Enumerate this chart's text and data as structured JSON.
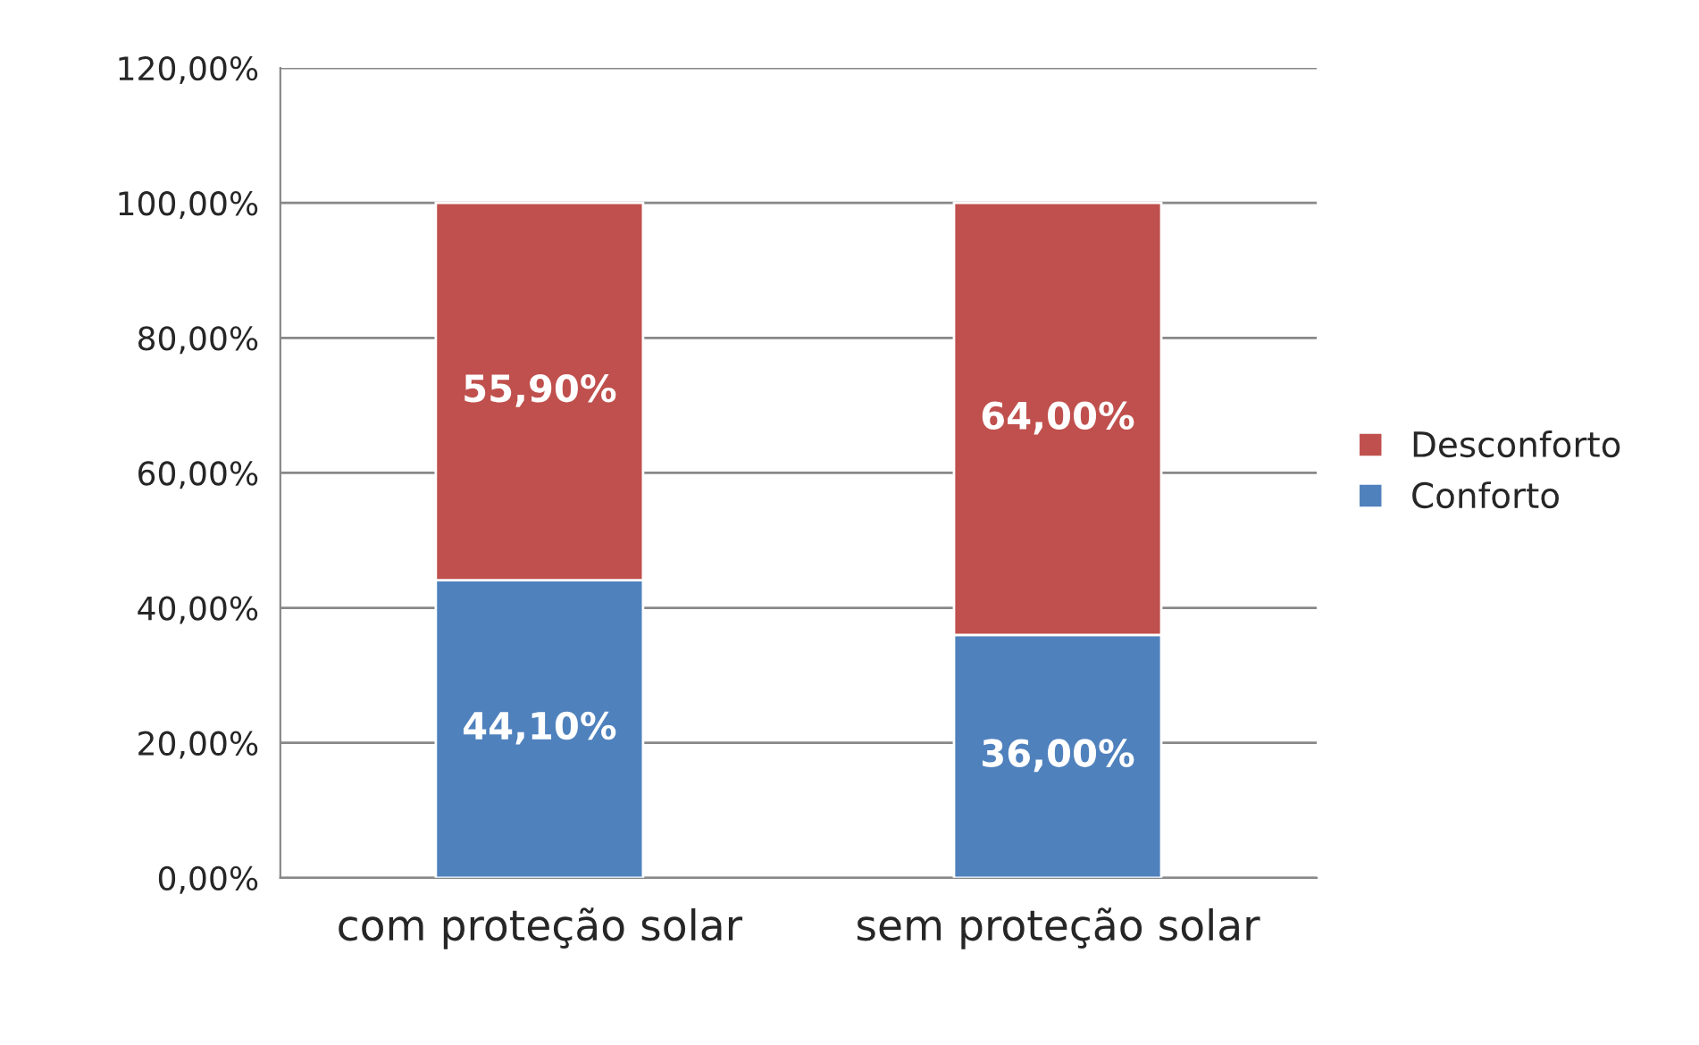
{
  "chart_data": {
    "type": "bar",
    "stacked": true,
    "categories": [
      "com proteção solar",
      "sem proteção solar"
    ],
    "series": [
      {
        "name": "Conforto",
        "color": "#4f81bd",
        "values": [
          44.1,
          36.0
        ],
        "value_labels": [
          "44,10%",
          "36,00%"
        ]
      },
      {
        "name": "Desconforto",
        "color": "#c0504d",
        "values": [
          55.9,
          64.0
        ],
        "value_labels": [
          "55,90%",
          "64,00%"
        ]
      }
    ],
    "ylim": [
      0,
      120
    ],
    "yticks": [
      {
        "value": 0,
        "label": "0,00%"
      },
      {
        "value": 20,
        "label": "20,00%"
      },
      {
        "value": 40,
        "label": "40,00%"
      },
      {
        "value": 60,
        "label": "60,00%"
      },
      {
        "value": 80,
        "label": "80,00%"
      },
      {
        "value": 100,
        "label": "100,00%"
      },
      {
        "value": 120,
        "label": "120,00%"
      }
    ],
    "grid": "y",
    "legend": "right"
  }
}
